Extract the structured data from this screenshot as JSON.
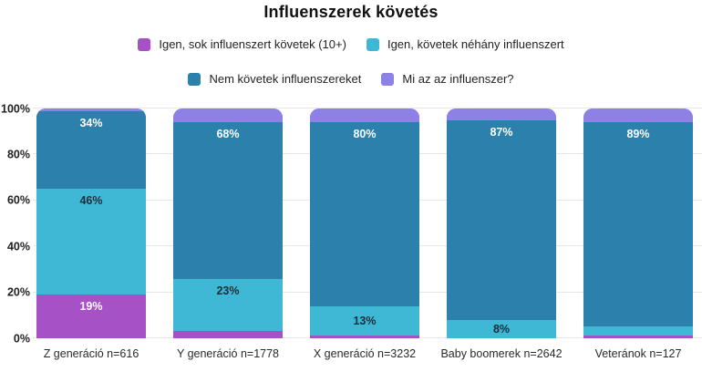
{
  "title": "Influenszerek követés",
  "legend": {
    "rows": [
      [
        {
          "label": "Igen, sok influenszert követek (10+)",
          "color": "#a651c6"
        },
        {
          "label": "Igen, követek néhány influenszert",
          "color": "#3fb8d6"
        }
      ],
      [
        {
          "label": "Nem követek influenszereket",
          "color": "#2b80ac"
        },
        {
          "label": "Mi az az influenszer?",
          "color": "#8e81e6"
        }
      ]
    ]
  },
  "chart_data": {
    "type": "bar",
    "stacked": true,
    "title": "Influenszerek követés",
    "categories": [
      "Z generáció n=616",
      "Y generáció n=1778",
      "X generáció n=3232",
      "Baby boomerek n=2642",
      "Veteránok n=127"
    ],
    "series": [
      {
        "name": "Igen, sok influenszert követek (10+)",
        "color": "#a651c6",
        "label_color": "#ffffff",
        "values": [
          19,
          3,
          1,
          0,
          1
        ],
        "labels": [
          "19%",
          "",
          "",
          "",
          ""
        ]
      },
      {
        "name": "Igen, követek néhány influenszert",
        "color": "#3fb8d6",
        "label_color": "#1b2d38",
        "values": [
          46,
          23,
          13,
          8,
          4
        ],
        "labels": [
          "46%",
          "23%",
          "13%",
          "8%",
          ""
        ]
      },
      {
        "name": "Nem követek influenszereket",
        "color": "#2b80ac",
        "label_color": "#ffffff",
        "values": [
          34,
          68,
          80,
          87,
          89
        ],
        "labels": [
          "34%",
          "68%",
          "80%",
          "87%",
          "89%"
        ]
      },
      {
        "name": "Mi az az influenszer?",
        "color": "#8e81e6",
        "label_color": "#ffffff",
        "values": [
          1,
          6,
          6,
          5,
          6
        ],
        "labels": [
          "",
          "",
          "",
          "",
          ""
        ]
      }
    ],
    "yticks": [
      "0%",
      "20%",
      "40%",
      "60%",
      "80%",
      "100%"
    ],
    "ytick_values": [
      0,
      20,
      40,
      60,
      80,
      100
    ],
    "ylim": [
      0,
      100
    ],
    "grid": true,
    "legend_position": "top"
  }
}
